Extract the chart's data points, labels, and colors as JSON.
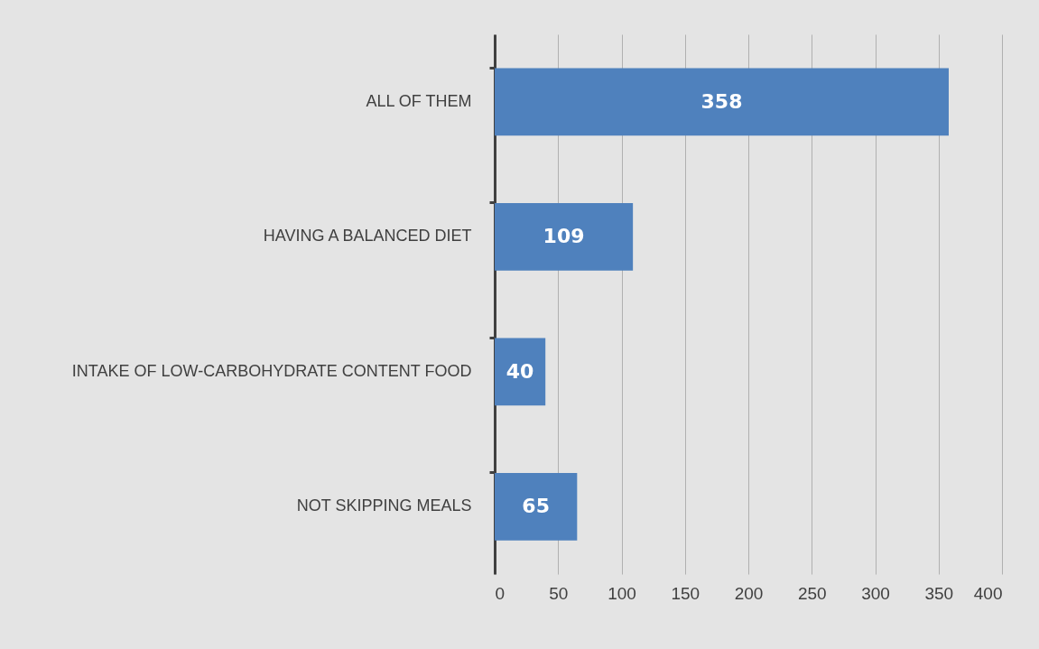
{
  "chart_data": {
    "type": "bar",
    "orientation": "horizontal",
    "categories": [
      "ALL OF THEM",
      "HAVING A BALANCED DIET",
      "INTAKE OF LOW-CARBOHYDRATE CONTENT FOOD",
      "NOT SKIPPING MEALS"
    ],
    "values": [
      358,
      109,
      40,
      65
    ],
    "color": "#4f81bd",
    "xlim": [
      0,
      400
    ],
    "xticks": [
      0,
      50,
      100,
      150,
      200,
      250,
      300,
      350,
      400
    ],
    "grid": "x",
    "data_labels": true
  }
}
